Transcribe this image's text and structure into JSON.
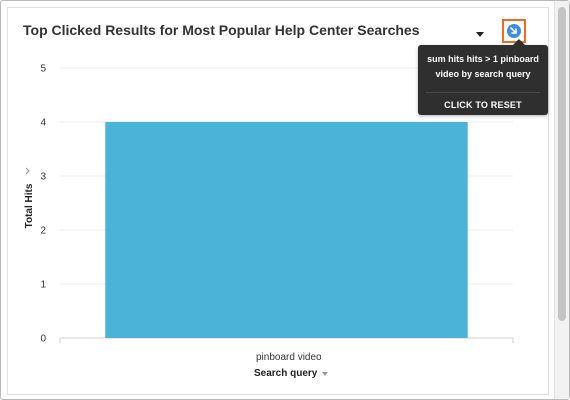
{
  "card": {
    "title": "Top Clicked Results for Most Popular Help Center Searches"
  },
  "tooltip": {
    "description": "sum hits hits > 1 pinboard video by search query",
    "reset_label": "CLICK TO RESET"
  },
  "colors": {
    "bar": "#4cb3d8",
    "filter_border": "#f06a23",
    "filter_dot": "#3e8ede",
    "tooltip_bg": "#2f2f2f"
  },
  "icons": {
    "menu": "caret-down-icon",
    "filter": "filter-arrow-icon",
    "axis_menu": "chevron-down-icon"
  },
  "chart_data": {
    "type": "bar",
    "categories": [
      "pinboard video"
    ],
    "values": [
      4
    ],
    "title": "Top Clicked Results for Most Popular Help Center Searches",
    "xlabel": "Search query",
    "ylabel": "Total Hits",
    "ylim": [
      0,
      5
    ],
    "yticks": [
      "0",
      "1",
      "2",
      "3",
      "4",
      "5"
    ],
    "grid": true,
    "bar_color": "#4cb3d8"
  }
}
